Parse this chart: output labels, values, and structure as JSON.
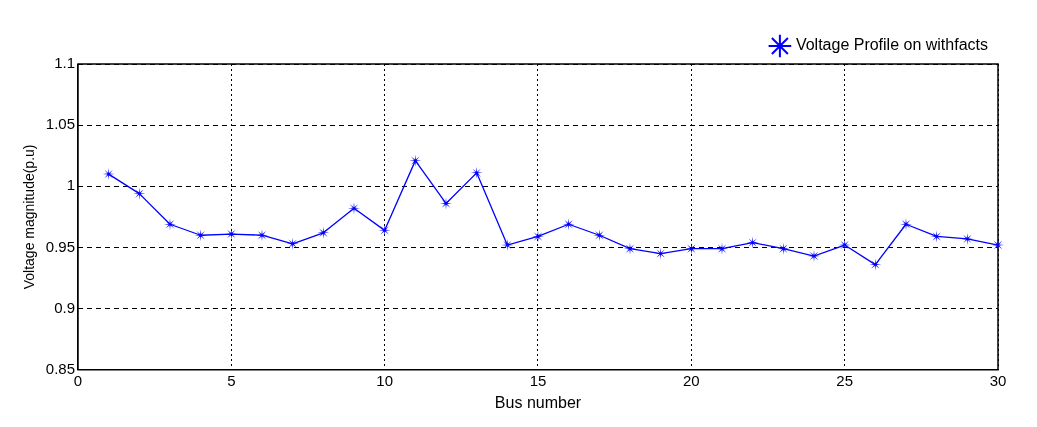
{
  "chart_data": {
    "type": "line",
    "xlabel": "Bus number",
    "ylabel": "Voltage magnitude(p.u)",
    "x": [
      1,
      2,
      3,
      4,
      5,
      6,
      7,
      8,
      9,
      10,
      11,
      12,
      13,
      14,
      15,
      16,
      17,
      18,
      19,
      20,
      21,
      22,
      23,
      24,
      25,
      26,
      27,
      28,
      29,
      30
    ],
    "series": [
      {
        "name": "Voltage Profile on withfacts",
        "color": "#0000ff",
        "values": [
          1.01,
          0.994,
          0.969,
          0.96,
          0.961,
          0.96,
          0.953,
          0.962,
          0.982,
          0.964,
          1.021,
          0.986,
          1.011,
          0.952,
          0.959,
          0.969,
          0.96,
          0.949,
          0.945,
          0.949,
          0.949,
          0.954,
          0.949,
          0.943,
          0.952,
          0.936,
          0.969,
          0.959,
          0.957,
          0.952
        ]
      }
    ],
    "xlim": [
      0,
      30
    ],
    "xticks": [
      0,
      5,
      10,
      15,
      20,
      25,
      30
    ],
    "ylim": [
      0.85,
      1.1
    ],
    "yticks": [
      0.85,
      0.9,
      0.95,
      1,
      1.05,
      1.1
    ],
    "grid": true,
    "legend": "top right",
    "marker": "star",
    "line_style": "solid"
  }
}
